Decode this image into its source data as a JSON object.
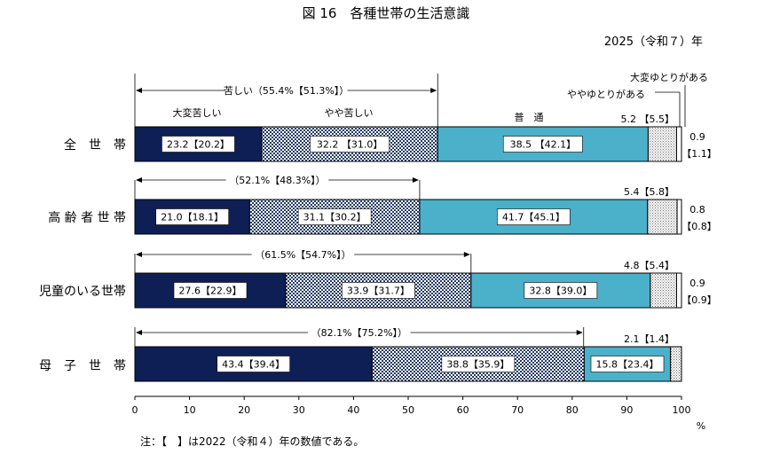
{
  "title": "図 16　各種世帯の生活意識",
  "year_label": "2025（令和７）年",
  "note": "注：【　】は2022（令和４）年の数値である。",
  "unit": "%",
  "legend": {
    "very_hard": "大変苦しい",
    "somewhat_hard": "やや苦しい",
    "normal": "普　通",
    "somewhat_comfortable": "ややゆとりがある",
    "very_comfortable": "大変ゆとりがある"
  },
  "colors": {
    "very_hard": "#0d1f55",
    "somewhat_hard_pattern": "#233a66",
    "normal": "#4bb0c9",
    "somewhat_comfortable_pattern": "#6b6b6b",
    "very_comfortable": "#ffffff",
    "outline": "#000000"
  },
  "chart_data": {
    "type": "bar",
    "orientation": "horizontal",
    "stacked": true,
    "categories": [
      "全　世　帯",
      "高 齢 者 世 帯",
      "児童のいる世帯",
      "母　子　世　帯"
    ],
    "series": [
      {
        "name": "大変苦しい",
        "values": [
          23.2,
          21.0,
          27.6,
          43.4
        ],
        "labels": [
          "23.2【20.2】",
          "21.0【18.1】",
          "27.6【22.9】",
          "43.4【39.4】"
        ]
      },
      {
        "name": "やや苦しい",
        "values": [
          32.2,
          31.1,
          33.9,
          38.8
        ],
        "labels": [
          "32.2 【31.0】",
          "31.1【30.2】",
          "33.9【31.7】",
          "38.8【35.9】"
        ]
      },
      {
        "name": "普　通",
        "values": [
          38.5,
          41.7,
          32.8,
          15.8
        ],
        "labels": [
          "38.5 【42.1】",
          "41.7【45.1】",
          "32.8【39.0】",
          "15.8【23.4】"
        ]
      },
      {
        "name": "ややゆとりがある",
        "values": [
          5.2,
          5.4,
          4.8,
          2.1
        ],
        "labels": [
          "5.2 【5.5】",
          "5.4【5.8】",
          "4.8【5.4】",
          "2.1【1.4】"
        ]
      },
      {
        "name": "大変ゆとりがある",
        "values": [
          0.9,
          0.8,
          0.9,
          0.0
        ],
        "labels": [
          "0.9",
          "0.8",
          "0.9",
          ""
        ],
        "labels_prev": [
          "【1.1】",
          "【0.8】",
          "【0.9】",
          ""
        ]
      }
    ],
    "hard_totals": [
      {
        "value": 55.4,
        "label": "苦しい（55.4%【51.3%】）"
      },
      {
        "value": 52.1,
        "label": "（52.1%【48.3%】）"
      },
      {
        "value": 61.5,
        "label": "（61.5%【54.7%】）"
      },
      {
        "value": 82.1,
        "label": "（82.1%【75.2%】）"
      }
    ],
    "xlim": [
      0,
      100
    ],
    "xticks": [
      0,
      10,
      20,
      30,
      40,
      50,
      60,
      70,
      80,
      90,
      100
    ],
    "xlabel": "%"
  }
}
